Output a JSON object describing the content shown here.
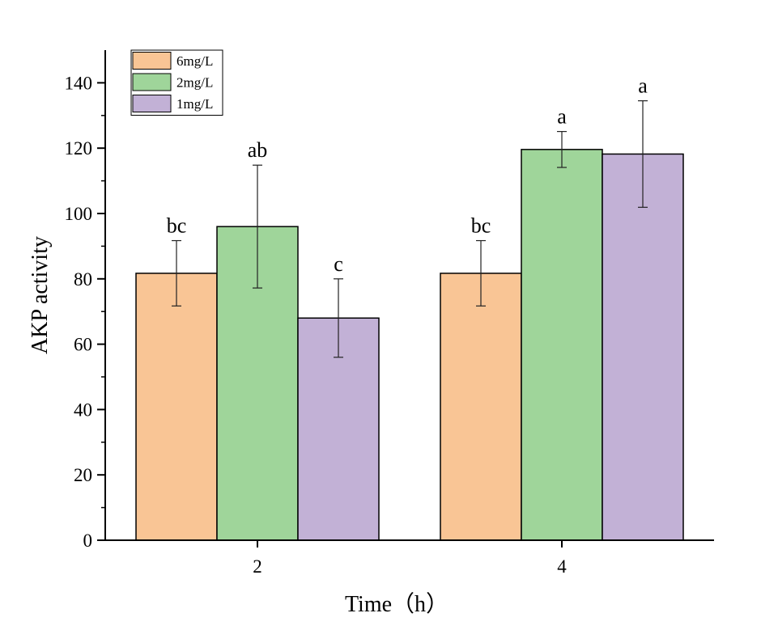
{
  "chart_data": {
    "type": "bar",
    "categories": [
      "2",
      "4"
    ],
    "series": [
      {
        "name": "6mg/L",
        "color": "#f9c595",
        "values": [
          81.7,
          81.7
        ],
        "errors": [
          10.0,
          10.0
        ],
        "labels": [
          "bc",
          "bc"
        ]
      },
      {
        "name": "2mg/L",
        "color": "#9fd59a",
        "values": [
          96.0,
          119.6
        ],
        "errors": [
          18.8,
          5.5
        ],
        "labels": [
          "ab",
          "a"
        ]
      },
      {
        "name": "1mg/L",
        "color": "#c2b1d6",
        "values": [
          68.0,
          118.2
        ],
        "errors": [
          12.0,
          16.3
        ],
        "labels": [
          "c",
          "a"
        ]
      }
    ],
    "xlabel": "Time（h）",
    "ylabel": "AKP activity",
    "ylim": [
      0,
      150
    ],
    "yticks": [
      0,
      20,
      40,
      60,
      80,
      100,
      120,
      140
    ],
    "grid": false,
    "legend_position": "top-left"
  }
}
